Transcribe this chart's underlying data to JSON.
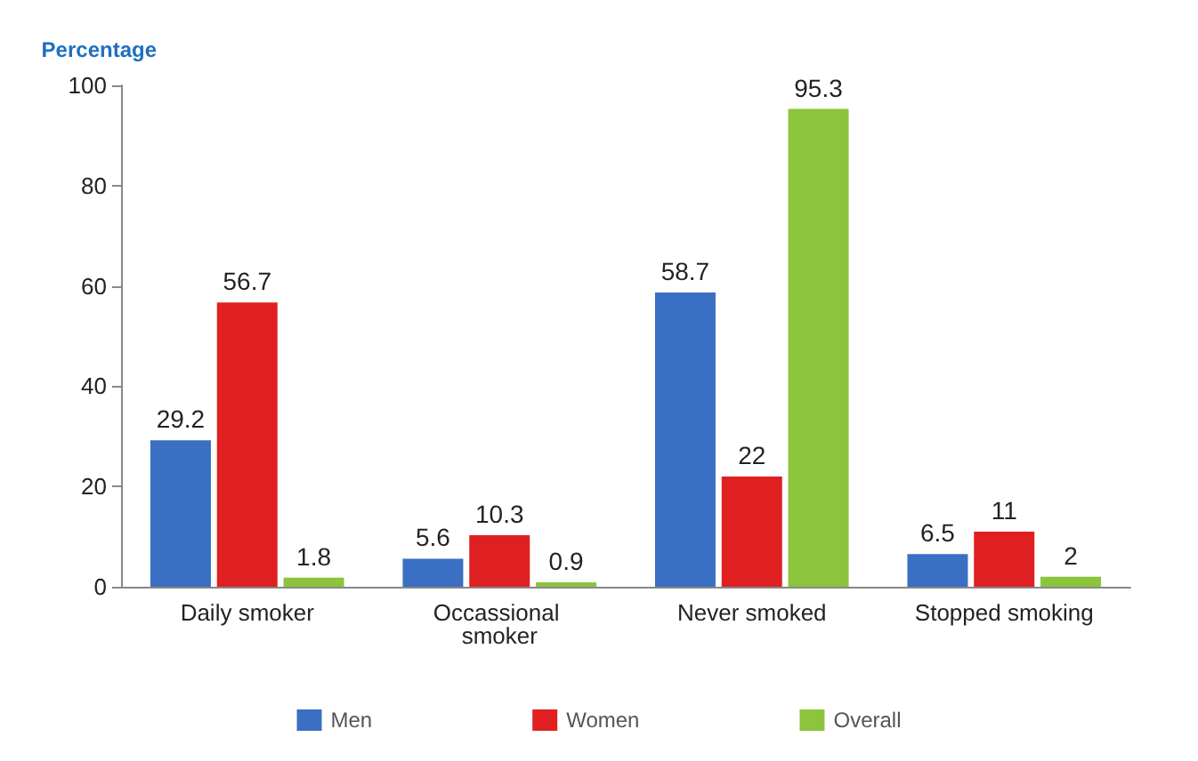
{
  "chart_data": {
    "type": "bar",
    "ylabel": "Percentage",
    "categories": [
      "Daily smoker",
      "Occassional smoker",
      "Never smoked",
      "Stopped smoking"
    ],
    "series": [
      {
        "name": "Men",
        "color": "#3a6fc4",
        "values": [
          29.2,
          5.6,
          58.7,
          6.5
        ]
      },
      {
        "name": "Women",
        "color": "#e02020",
        "values": [
          56.7,
          10.3,
          22,
          11
        ]
      },
      {
        "name": "Overall",
        "color": "#8cc43c",
        "values": [
          1.8,
          0.9,
          95.3,
          2
        ]
      }
    ],
    "ylim": [
      0,
      100
    ],
    "yticks": [
      0,
      20,
      40,
      60,
      80,
      100
    ],
    "grid": false,
    "legend": "bottom",
    "data_labels": true
  }
}
